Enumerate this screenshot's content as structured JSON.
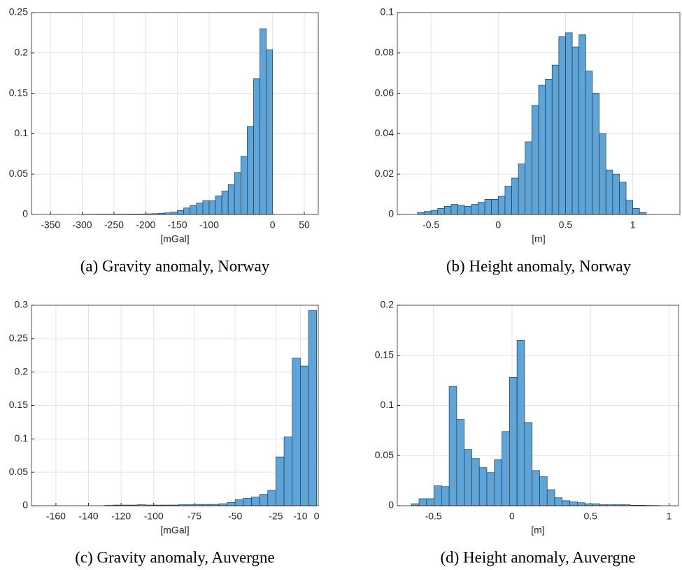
{
  "chart_data": [
    {
      "type": "histogram",
      "caption": "(a) Gravity anomaly, Norway",
      "xlabel": "[mGal]",
      "bins": [
        -300,
        -290,
        -280,
        -270,
        -260,
        -250,
        -240,
        -230,
        -220,
        -210,
        -200,
        -190,
        -180,
        -170,
        -160,
        -150,
        -140,
        -130,
        -120,
        -110,
        -100,
        -90,
        -80,
        -70,
        -60,
        -50,
        -40,
        -30,
        -20,
        -10,
        0
      ],
      "values": [
        0.0002,
        0.0002,
        0.0003,
        0.0003,
        0.0003,
        0.0004,
        0.0004,
        0.0005,
        0.0005,
        0.0006,
        0.0008,
        0.001,
        0.0015,
        0.002,
        0.003,
        0.005,
        0.008,
        0.011,
        0.014,
        0.017,
        0.017,
        0.023,
        0.029,
        0.037,
        0.052,
        0.072,
        0.109,
        0.168,
        0.23,
        0.204
      ],
      "color": "#5ea4d6",
      "edgecolor": "#1e3a50",
      "xlim": [
        -380,
        72
      ],
      "ylim": [
        0,
        0.25
      ],
      "xticks": [
        -350,
        -300,
        -250,
        -200,
        -150,
        -100,
        0,
        50
      ],
      "yticks": [
        0,
        0.05,
        0.1,
        0.15,
        0.2,
        0.25
      ],
      "grid": true
    },
    {
      "type": "histogram",
      "caption": "(b) Height anomaly, Norway",
      "xlabel": "[m]",
      "bins": [
        -0.6,
        -0.55,
        -0.5,
        -0.45,
        -0.4,
        -0.35,
        -0.3,
        -0.25,
        -0.2,
        -0.15,
        -0.1,
        -0.05,
        0,
        0.05,
        0.1,
        0.15,
        0.2,
        0.25,
        0.3,
        0.35,
        0.4,
        0.45,
        0.5,
        0.55,
        0.6,
        0.65,
        0.7,
        0.75,
        0.8,
        0.85,
        0.9,
        0.95,
        1.0,
        1.05,
        1.1
      ],
      "values": [
        0.001,
        0.0015,
        0.002,
        0.003,
        0.004,
        0.005,
        0.0045,
        0.004,
        0.005,
        0.006,
        0.0075,
        0.0075,
        0.009,
        0.014,
        0.018,
        0.025,
        0.036,
        0.054,
        0.064,
        0.067,
        0.074,
        0.088,
        0.09,
        0.083,
        0.089,
        0.071,
        0.06,
        0.04,
        0.022,
        0.02,
        0.016,
        0.007,
        0.003,
        0.001
      ],
      "color": "#5ea4d6",
      "edgecolor": "#1e3a50",
      "xlim": [
        -0.75,
        1.35
      ],
      "ylim": [
        0,
        0.1
      ],
      "xticks": [
        -0.5,
        0,
        0.5,
        1
      ],
      "yticks": [
        0,
        0.02,
        0.04,
        0.06,
        0.08,
        0.1
      ],
      "grid": true
    },
    {
      "type": "histogram",
      "caption": "(c) Gravity anomaly, Auvergne",
      "xlabel": "[mGal]",
      "bins": [
        -130,
        -125,
        -120,
        -115,
        -110,
        -105,
        -100,
        -95,
        -90,
        -85,
        -80,
        -75,
        -70,
        -65,
        -60,
        -55,
        -50,
        -45,
        -40,
        -35,
        -30,
        -25,
        -20,
        -15,
        -10,
        -5,
        0
      ],
      "values": [
        0.0005,
        0.001,
        0.001,
        0.001,
        0.0015,
        0.001,
        0.001,
        0.001,
        0.001,
        0.0015,
        0.0015,
        0.002,
        0.002,
        0.002,
        0.003,
        0.005,
        0.009,
        0.011,
        0.013,
        0.017,
        0.023,
        0.073,
        0.103,
        0.221,
        0.209,
        0.292
      ],
      "color": "#5ea4d6",
      "edgecolor": "#1e3a50",
      "xlim": [
        -175,
        1
      ],
      "ylim": [
        0,
        0.3
      ],
      "xticks": [
        -160,
        -140,
        -120,
        -100,
        -75,
        -50,
        -25,
        -10,
        0
      ],
      "yticks": [
        0,
        0.05,
        0.1,
        0.15,
        0.2,
        0.25,
        0.3
      ],
      "grid": true
    },
    {
      "type": "histogram",
      "caption": "(d) Height anomaly, Auvergne",
      "xlabel": "[m]",
      "bins": [
        -0.64,
        -0.592,
        -0.544,
        -0.496,
        -0.448,
        -0.4,
        -0.352,
        -0.304,
        -0.256,
        -0.208,
        -0.16,
        -0.112,
        -0.064,
        -0.016,
        0.032,
        0.08,
        0.128,
        0.176,
        0.224,
        0.272,
        0.32,
        0.368,
        0.416,
        0.464,
        0.512,
        0.56,
        0.608,
        0.656,
        0.704,
        0.752,
        0.8,
        0.848,
        0.896,
        0.944
      ],
      "values": [
        0.002,
        0.007,
        0.007,
        0.02,
        0.019,
        0.119,
        0.086,
        0.056,
        0.047,
        0.038,
        0.033,
        0.046,
        0.074,
        0.128,
        0.165,
        0.083,
        0.035,
        0.029,
        0.016,
        0.008,
        0.005,
        0.004,
        0.003,
        0.002,
        0.002,
        0.001,
        0.001,
        0.001,
        0.001,
        0.0005,
        0.0005,
        0.0003,
        0.0002
      ],
      "color": "#5ea4d6",
      "edgecolor": "#1e3a50",
      "xlim": [
        -0.73,
        1.06
      ],
      "ylim": [
        0,
        0.2
      ],
      "xticks": [
        -0.5,
        0,
        0.5,
        1
      ],
      "yticks": [
        0,
        0.05,
        0.1,
        0.15,
        0.2
      ],
      "grid": true
    }
  ]
}
